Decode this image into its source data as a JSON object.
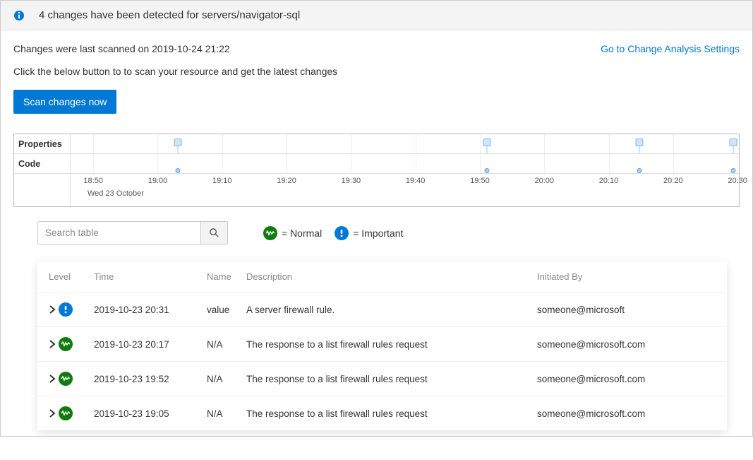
{
  "header": {
    "title": "4 changes have been detected for servers/navigator-sql"
  },
  "scan_info": "Changes were last scanned on 2019-10-24 21:22",
  "settings_link": "Go to Change Analysis Settings",
  "instruction": "Click the below button to to scan your resource and get the latest changes",
  "scan_button": "Scan changes now",
  "timeline": {
    "row_labels": [
      "Properties",
      "Code"
    ],
    "ticks": [
      "18:50",
      "19:00",
      "19:10",
      "19:20",
      "19:30",
      "19:40",
      "19:50",
      "20:00",
      "20:10",
      "20:20",
      "20:30"
    ],
    "date_label": "Wed 23 October",
    "tick_positions_pct": [
      3.4,
      13.04,
      22.68,
      32.32,
      41.96,
      51.6,
      61.24,
      70.88,
      80.52,
      90.16,
      99.8
    ],
    "markers_pct": [
      16.0,
      62.3,
      85.1,
      99.2
    ],
    "marker_color_fill": "#cfe4ff",
    "marker_color_border": "#7fb5f0"
  },
  "search": {
    "placeholder": "Search table"
  },
  "legend": {
    "normal": "= Normal",
    "important": "= Important"
  },
  "table": {
    "columns": {
      "level": "Level",
      "time": "Time",
      "name": "Name",
      "desc": "Description",
      "init": "Initiated By"
    },
    "rows": [
      {
        "level": "important",
        "time": "2019-10-23 20:31",
        "name": "value",
        "desc": "A server firewall rule.",
        "init": "someone@microsoft"
      },
      {
        "level": "normal",
        "time": "2019-10-23 20:17",
        "name": "N/A",
        "desc": "The response to a list firewall rules request",
        "init": "someone@microsoft.com"
      },
      {
        "level": "normal",
        "time": "2019-10-23 19:52",
        "name": "N/A",
        "desc": "The response to a list firewall rules request",
        "init": "someone@microsoft.com"
      },
      {
        "level": "normal",
        "time": "2019-10-23 19:05",
        "name": "N/A",
        "desc": "The response to a list firewall rules request",
        "init": "someone@microsoft.com"
      }
    ]
  },
  "colors": {
    "primary": "#0078d4",
    "normal": "#107c10"
  }
}
